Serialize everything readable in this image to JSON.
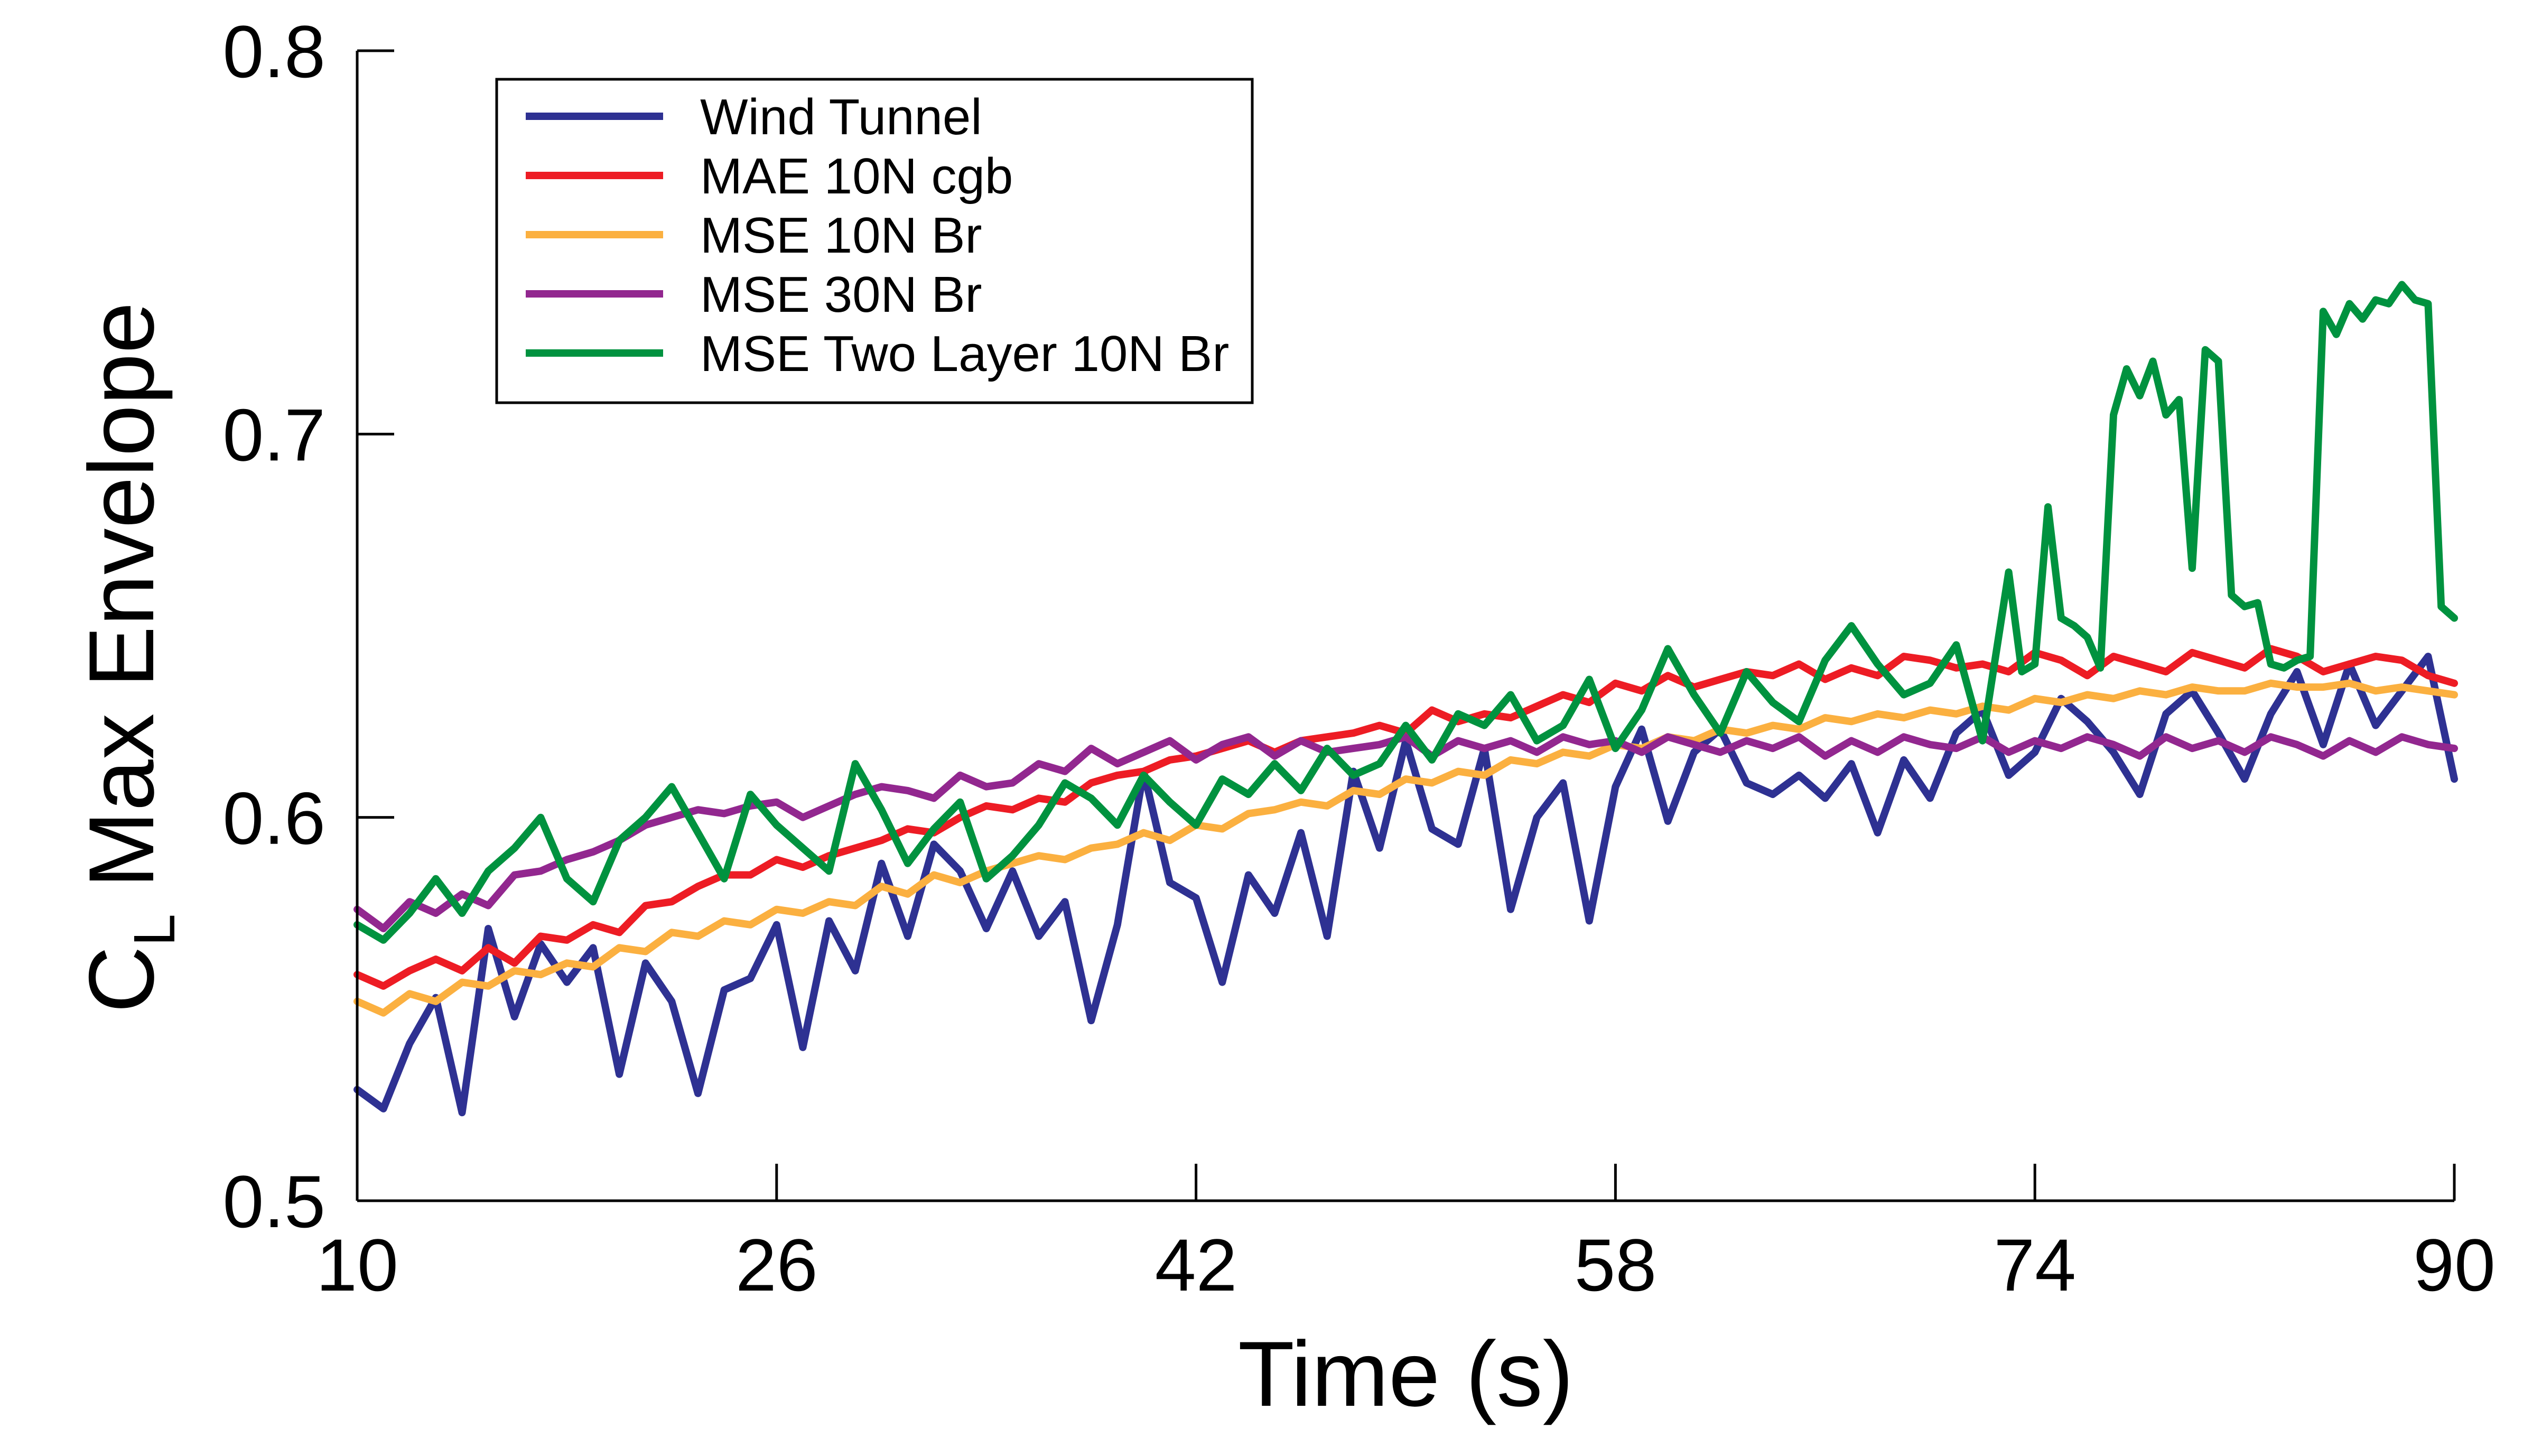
{
  "chart_data": {
    "type": "line",
    "title": "",
    "xlabel": "Time (s)",
    "ylabel": {
      "main": "C",
      "subscript": "L",
      "rest": " Max Envelope"
    },
    "xlim": [
      10,
      90
    ],
    "ylim": [
      0.5,
      0.8
    ],
    "xticks": [
      10,
      26,
      42,
      58,
      74,
      90
    ],
    "yticks": [
      0.5,
      0.6,
      0.7,
      0.8
    ],
    "xtick_labels": [
      "10",
      "26",
      "42",
      "58",
      "74",
      "90"
    ],
    "ytick_labels": [
      "0.5",
      "0.6",
      "0.7",
      "0.8"
    ],
    "grid": false,
    "legend_position": "top-left",
    "series": [
      {
        "name": "Wind Tunnel",
        "color": "#2e3192",
        "x": [
          10,
          11,
          12,
          13,
          14,
          15,
          16,
          17,
          18,
          19,
          20,
          21,
          22,
          23,
          24,
          25,
          26,
          27,
          28,
          29,
          30,
          31,
          32,
          33,
          34,
          35,
          36,
          37,
          38,
          39,
          40,
          41,
          42,
          43,
          44,
          45,
          46,
          47,
          48,
          49,
          50,
          51,
          52,
          53,
          54,
          55,
          56,
          57,
          58,
          59,
          60,
          61,
          62,
          63,
          64,
          65,
          66,
          67,
          68,
          69,
          70,
          71,
          72,
          73,
          74,
          75,
          76,
          77,
          78,
          79,
          80,
          81,
          82,
          83,
          84,
          85,
          86,
          87,
          88,
          89,
          90
        ],
        "y": [
          0.529,
          0.524,
          0.541,
          0.553,
          0.523,
          0.571,
          0.548,
          0.567,
          0.557,
          0.566,
          0.533,
          0.562,
          0.552,
          0.528,
          0.555,
          0.558,
          0.572,
          0.54,
          0.573,
          0.56,
          0.588,
          0.569,
          0.593,
          0.586,
          0.571,
          0.586,
          0.569,
          0.578,
          0.547,
          0.572,
          0.612,
          0.583,
          0.579,
          0.557,
          0.585,
          0.575,
          0.596,
          0.569,
          0.612,
          0.592,
          0.62,
          0.597,
          0.593,
          0.618,
          0.576,
          0.6,
          0.609,
          0.573,
          0.608,
          0.623,
          0.599,
          0.617,
          0.623,
          0.609,
          0.606,
          0.611,
          0.605,
          0.614,
          0.596,
          0.615,
          0.605,
          0.622,
          0.628,
          0.611,
          0.617,
          0.631,
          0.625,
          0.617,
          0.606,
          0.627,
          0.633,
          0.622,
          0.61,
          0.627,
          0.638,
          0.619,
          0.64,
          0.624,
          0.633,
          0.642,
          0.61
        ]
      },
      {
        "name": "MAE 10N cgb",
        "color": "#ed1c24",
        "x": [
          10,
          11,
          12,
          13,
          14,
          15,
          16,
          17,
          18,
          19,
          20,
          21,
          22,
          23,
          24,
          25,
          26,
          27,
          28,
          29,
          30,
          31,
          32,
          33,
          34,
          35,
          36,
          37,
          38,
          39,
          40,
          41,
          42,
          43,
          44,
          45,
          46,
          47,
          48,
          49,
          50,
          51,
          52,
          53,
          54,
          55,
          56,
          57,
          58,
          59,
          60,
          61,
          62,
          63,
          64,
          65,
          66,
          67,
          68,
          69,
          70,
          71,
          72,
          73,
          74,
          75,
          76,
          77,
          78,
          79,
          80,
          81,
          82,
          83,
          84,
          85,
          86,
          87,
          88,
          89,
          90
        ],
        "y": [
          0.559,
          0.556,
          0.56,
          0.563,
          0.56,
          0.566,
          0.562,
          0.569,
          0.568,
          0.572,
          0.57,
          0.577,
          0.578,
          0.582,
          0.585,
          0.585,
          0.589,
          0.587,
          0.59,
          0.592,
          0.594,
          0.597,
          0.596,
          0.6,
          0.603,
          0.602,
          0.605,
          0.604,
          0.609,
          0.611,
          0.612,
          0.615,
          0.616,
          0.618,
          0.62,
          0.617,
          0.62,
          0.621,
          0.622,
          0.624,
          0.622,
          0.628,
          0.625,
          0.627,
          0.626,
          0.629,
          0.632,
          0.63,
          0.635,
          0.633,
          0.637,
          0.634,
          0.636,
          0.638,
          0.637,
          0.64,
          0.636,
          0.639,
          0.637,
          0.642,
          0.641,
          0.639,
          0.64,
          0.638,
          0.643,
          0.641,
          0.637,
          0.642,
          0.64,
          0.638,
          0.643,
          0.641,
          0.639,
          0.644,
          0.642,
          0.638,
          0.64,
          0.642,
          0.641,
          0.637,
          0.635
        ]
      },
      {
        "name": "MSE 10N Br",
        "color": "#fbb040",
        "x": [
          10,
          11,
          12,
          13,
          14,
          15,
          16,
          17,
          18,
          19,
          20,
          21,
          22,
          23,
          24,
          25,
          26,
          27,
          28,
          29,
          30,
          31,
          32,
          33,
          34,
          35,
          36,
          37,
          38,
          39,
          40,
          41,
          42,
          43,
          44,
          45,
          46,
          47,
          48,
          49,
          50,
          51,
          52,
          53,
          54,
          55,
          56,
          57,
          58,
          59,
          60,
          61,
          62,
          63,
          64,
          65,
          66,
          67,
          68,
          69,
          70,
          71,
          72,
          73,
          74,
          75,
          76,
          77,
          78,
          79,
          80,
          81,
          82,
          83,
          84,
          85,
          86,
          87,
          88,
          89,
          90
        ],
        "y": [
          0.552,
          0.549,
          0.554,
          0.552,
          0.557,
          0.556,
          0.56,
          0.559,
          0.562,
          0.561,
          0.566,
          0.565,
          0.57,
          0.569,
          0.573,
          0.572,
          0.576,
          0.575,
          0.578,
          0.577,
          0.582,
          0.58,
          0.585,
          0.583,
          0.586,
          0.588,
          0.59,
          0.589,
          0.592,
          0.593,
          0.596,
          0.594,
          0.598,
          0.597,
          0.601,
          0.602,
          0.604,
          0.603,
          0.607,
          0.606,
          0.61,
          0.609,
          0.612,
          0.611,
          0.615,
          0.614,
          0.617,
          0.616,
          0.619,
          0.618,
          0.621,
          0.62,
          0.623,
          0.622,
          0.624,
          0.623,
          0.626,
          0.625,
          0.627,
          0.626,
          0.628,
          0.627,
          0.629,
          0.628,
          0.631,
          0.63,
          0.632,
          0.631,
          0.633,
          0.632,
          0.634,
          0.633,
          0.633,
          0.635,
          0.634,
          0.634,
          0.635,
          0.633,
          0.634,
          0.633,
          0.632
        ]
      },
      {
        "name": "MSE 30N Br",
        "color": "#92278f",
        "x": [
          10,
          11,
          12,
          13,
          14,
          15,
          16,
          17,
          18,
          19,
          20,
          21,
          22,
          23,
          24,
          25,
          26,
          27,
          28,
          29,
          30,
          31,
          32,
          33,
          34,
          35,
          36,
          37,
          38,
          39,
          40,
          41,
          42,
          43,
          44,
          45,
          46,
          47,
          48,
          49,
          50,
          51,
          52,
          53,
          54,
          55,
          56,
          57,
          58,
          59,
          60,
          61,
          62,
          63,
          64,
          65,
          66,
          67,
          68,
          69,
          70,
          71,
          72,
          73,
          74,
          75,
          76,
          77,
          78,
          79,
          80,
          81,
          82,
          83,
          84,
          85,
          86,
          87,
          88,
          89,
          90
        ],
        "y": [
          0.576,
          0.571,
          0.578,
          0.575,
          0.58,
          0.577,
          0.585,
          0.586,
          0.589,
          0.591,
          0.594,
          0.598,
          0.6,
          0.602,
          0.601,
          0.603,
          0.604,
          0.6,
          0.603,
          0.606,
          0.608,
          0.607,
          0.605,
          0.611,
          0.608,
          0.609,
          0.614,
          0.612,
          0.618,
          0.614,
          0.617,
          0.62,
          0.615,
          0.619,
          0.621,
          0.616,
          0.62,
          0.617,
          0.618,
          0.619,
          0.621,
          0.616,
          0.62,
          0.618,
          0.62,
          0.617,
          0.621,
          0.619,
          0.62,
          0.617,
          0.621,
          0.619,
          0.617,
          0.62,
          0.618,
          0.621,
          0.616,
          0.62,
          0.617,
          0.621,
          0.619,
          0.618,
          0.621,
          0.617,
          0.62,
          0.618,
          0.621,
          0.619,
          0.616,
          0.621,
          0.618,
          0.62,
          0.617,
          0.621,
          0.619,
          0.616,
          0.62,
          0.617,
          0.621,
          0.619,
          0.618
        ]
      },
      {
        "name": "MSE Two Layer 10N Br",
        "color": "#00923f",
        "x": [
          10,
          11,
          12,
          13,
          14,
          15,
          16,
          17,
          18,
          19,
          20,
          21,
          22,
          23,
          24,
          25,
          26,
          27,
          28,
          29,
          30,
          31,
          32,
          33,
          34,
          35,
          36,
          37,
          38,
          39,
          40,
          41,
          42,
          43,
          44,
          45,
          46,
          47,
          48,
          49,
          50,
          51,
          52,
          53,
          54,
          55,
          56,
          57,
          58,
          59,
          60,
          61,
          62,
          63,
          64,
          65,
          66,
          67,
          68,
          69,
          70,
          71,
          72,
          73,
          73.5,
          74,
          74.5,
          75,
          75.5,
          76,
          76.5,
          77,
          77.5,
          78,
          78.5,
          79,
          79.5,
          80,
          80.5,
          81,
          81.5,
          82,
          82.5,
          83,
          83.5,
          84,
          84.5,
          85,
          85.5,
          86,
          86.5,
          87,
          87.5,
          88,
          88.5,
          89,
          89.5,
          90
        ],
        "y": [
          0.572,
          0.568,
          0.575,
          0.584,
          0.575,
          0.586,
          0.592,
          0.6,
          0.584,
          0.578,
          0.594,
          0.6,
          0.608,
          0.596,
          0.584,
          0.606,
          0.598,
          0.592,
          0.586,
          0.614,
          0.602,
          0.588,
          0.597,
          0.604,
          0.584,
          0.59,
          0.598,
          0.609,
          0.605,
          0.598,
          0.611,
          0.604,
          0.598,
          0.61,
          0.606,
          0.614,
          0.607,
          0.618,
          0.611,
          0.614,
          0.624,
          0.615,
          0.627,
          0.624,
          0.632,
          0.62,
          0.624,
          0.636,
          0.618,
          0.628,
          0.644,
          0.632,
          0.622,
          0.638,
          0.63,
          0.625,
          0.641,
          0.65,
          0.64,
          0.632,
          0.635,
          0.645,
          0.62,
          0.664,
          0.638,
          0.64,
          0.681,
          0.652,
          0.65,
          0.647,
          0.639,
          0.705,
          0.717,
          0.71,
          0.719,
          0.705,
          0.709,
          0.665,
          0.722,
          0.719,
          0.658,
          0.655,
          0.656,
          0.64,
          0.639,
          0.641,
          0.642,
          0.732,
          0.726,
          0.734,
          0.73,
          0.735,
          0.734,
          0.739,
          0.735,
          0.734,
          0.655,
          0.652
        ]
      }
    ]
  }
}
